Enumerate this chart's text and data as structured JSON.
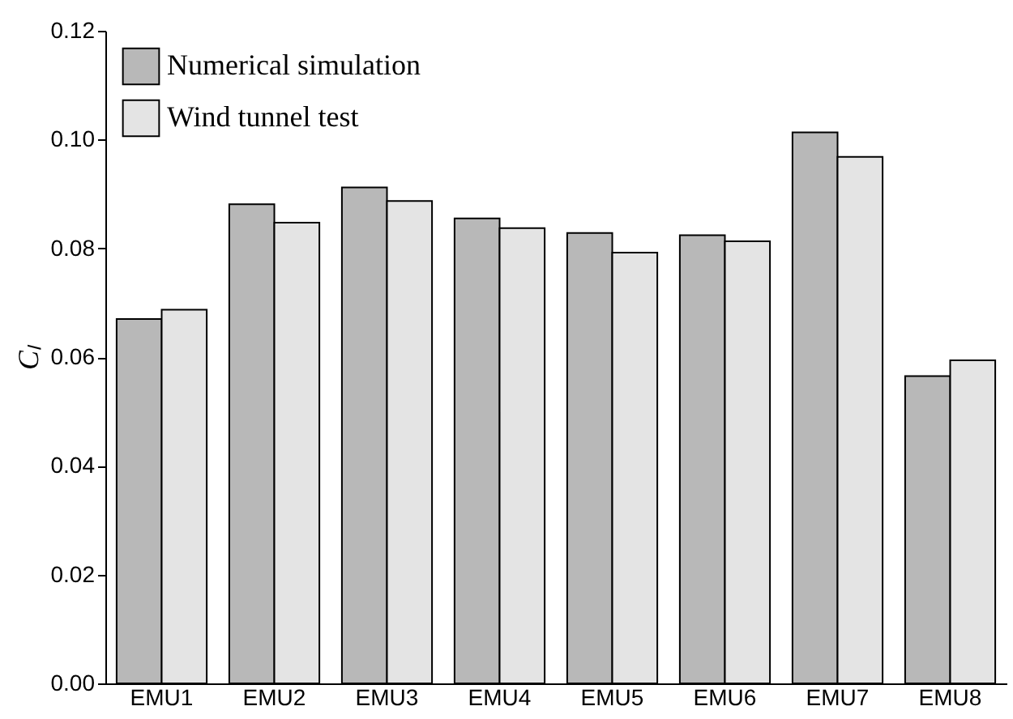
{
  "chart_data": {
    "type": "bar",
    "ylabel": "Cₗ",
    "categories": [
      "EMU1",
      "EMU2",
      "EMU3",
      "EMU4",
      "EMU5",
      "EMU6",
      "EMU7",
      "EMU8"
    ],
    "series": [
      {
        "name": "Numerical simulation",
        "color": "#b8b8b8",
        "values": [
          0.067,
          0.0881,
          0.0912,
          0.0855,
          0.0828,
          0.0824,
          0.1013,
          0.0565
        ]
      },
      {
        "name": "Wind tunnel test",
        "color": "#e4e4e4",
        "values": [
          0.0687,
          0.0847,
          0.0887,
          0.0837,
          0.0792,
          0.0813,
          0.0968,
          0.0594
        ]
      }
    ],
    "ylim": [
      0,
      0.12
    ],
    "yticks": [
      {
        "value": 0,
        "label": "0.00"
      },
      0.02,
      0.04,
      0.06,
      0.08,
      {
        "value": 0.1,
        "label": "0.10"
      },
      0.12
    ],
    "grid": false,
    "legend": "top left"
  }
}
